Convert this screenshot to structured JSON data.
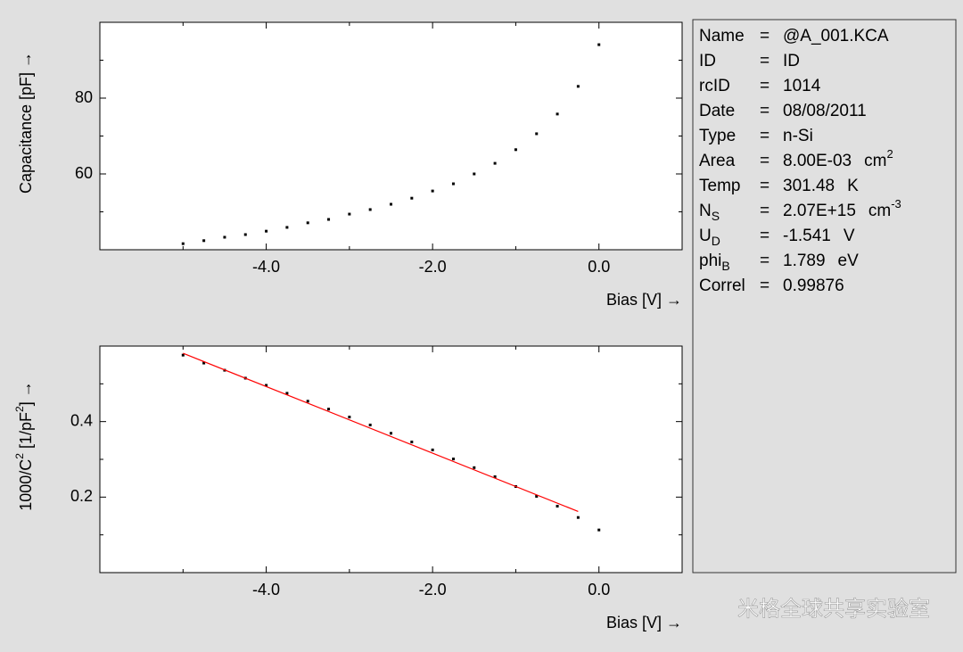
{
  "chart_data": [
    {
      "type": "scatter",
      "xlabel": "Bias [V] →",
      "ylabel_parts": [
        {
          "text": "Capacitance [pF] →"
        }
      ],
      "xlim": [
        -6,
        1
      ],
      "ylim": [
        40,
        100
      ],
      "xticks": [
        {
          "value": -4,
          "label": "-4.0"
        },
        {
          "value": -2,
          "label": "-2.0"
        },
        {
          "value": 0,
          "label": "0.0"
        }
      ],
      "yticks": [
        60,
        80
      ],
      "xminor": [
        -5,
        -3,
        -1
      ],
      "yminor": [
        50,
        70,
        90
      ],
      "series": [
        {
          "mode": "points",
          "color": "#000000",
          "x": [
            -5,
            -4.75,
            -4.5,
            -4.25,
            -4,
            -3.75,
            -3.5,
            -3.25,
            -3,
            -2.75,
            -2.5,
            -2.25,
            -2,
            -1.75,
            -1.5,
            -1.25,
            -1,
            -0.75,
            -0.5,
            -0.25,
            0
          ],
          "values": [
            41.6,
            42.4,
            43.3,
            44.0,
            44.9,
            45.9,
            47.1,
            48.0,
            49.4,
            50.6,
            52.0,
            53.6,
            55.5,
            57.4,
            60.0,
            62.8,
            66.4,
            70.6,
            75.8,
            83.1,
            94.1
          ]
        }
      ]
    },
    {
      "type": "scatter",
      "xlabel": "Bias [V] →",
      "ylabel_parts": [
        {
          "text": "1000/C"
        },
        {
          "text": "2",
          "sup": true
        },
        {
          "text": " [1/pF"
        },
        {
          "text": "2",
          "sup": true
        },
        {
          "text": "] →"
        }
      ],
      "xlim": [
        -6,
        1
      ],
      "ylim": [
        0,
        0.6
      ],
      "xticks": [
        {
          "value": -4,
          "label": "-4.0"
        },
        {
          "value": -2,
          "label": "-2.0"
        },
        {
          "value": 0,
          "label": "0.0"
        }
      ],
      "yticks": [
        0.2,
        0.4
      ],
      "xminor": [
        -5,
        -3,
        -1
      ],
      "yminor": [
        0.1,
        0.3,
        0.5
      ],
      "series": [
        {
          "mode": "points",
          "color": "#000000",
          "x": [
            -5,
            -4.75,
            -4.5,
            -4.25,
            -4,
            -3.75,
            -3.5,
            -3.25,
            -3,
            -2.75,
            -2.5,
            -2.25,
            -2,
            -1.75,
            -1.5,
            -1.25,
            -1,
            -0.75,
            -0.5,
            -0.25,
            0
          ],
          "values": [
            0.576,
            0.555,
            0.536,
            0.515,
            0.496,
            0.475,
            0.454,
            0.433,
            0.412,
            0.391,
            0.369,
            0.346,
            0.325,
            0.301,
            0.278,
            0.254,
            0.228,
            0.202,
            0.176,
            0.146,
            0.113
          ]
        },
        {
          "mode": "line",
          "color": "#ff0000",
          "x": [
            -5,
            -0.25
          ],
          "values": [
            0.581,
            0.162
          ]
        }
      ]
    }
  ],
  "info": {
    "separator": "=",
    "rows": [
      {
        "key": "Name",
        "value": "@A_001.KCA"
      },
      {
        "key": "ID",
        "value": "ID"
      },
      {
        "key": "rcID",
        "value": "1014"
      },
      {
        "key": "Date",
        "value": "08/08/2011"
      },
      {
        "key": "Type",
        "value": "n-Si"
      },
      {
        "key": "Area",
        "value": "8.00E-03",
        "unit": "cm",
        "unit_sup": "2"
      },
      {
        "key": "Temp",
        "value": "301.48",
        "unit": "K"
      },
      {
        "key": "N",
        "key_sub": "S",
        "value": "2.07E+15",
        "unit": "cm",
        "unit_sup": "-3"
      },
      {
        "key": "U",
        "key_sub": "D",
        "value": "-1.541",
        "unit": "V"
      },
      {
        "key": "phi",
        "key_sub": "B",
        "value": "1.789",
        "unit": "eV"
      },
      {
        "key": "Correl",
        "value": "0.99876"
      }
    ]
  },
  "watermark": "米格全球共享实验室"
}
